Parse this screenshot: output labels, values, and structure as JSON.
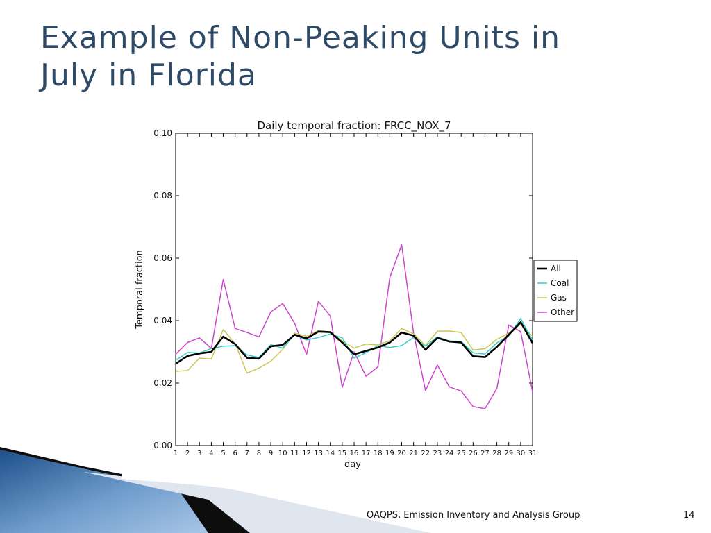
{
  "slide": {
    "title_line1": "Example of Non-Peaking Units in",
    "title_line2": "July in Florida",
    "title_color": "#2e4a66"
  },
  "footer": {
    "text": "OAQPS, Emission Inventory and Analysis Group",
    "page_number": "14"
  },
  "chart_data": {
    "type": "line",
    "title": "Daily temporal fraction: FRCC_NOX_7",
    "xlabel": "day",
    "ylabel": "Temporal fraction",
    "xlim": [
      1,
      31
    ],
    "ylim": [
      0,
      0.1
    ],
    "yticks": [
      "0.00",
      "0.02",
      "0.04",
      "0.06",
      "0.08",
      "0.10"
    ],
    "x": [
      1,
      2,
      3,
      4,
      5,
      6,
      7,
      8,
      9,
      10,
      11,
      12,
      13,
      14,
      15,
      16,
      17,
      18,
      19,
      20,
      21,
      22,
      23,
      24,
      25,
      26,
      27,
      28,
      29,
      30,
      31
    ],
    "grid": false,
    "legend_position": "right",
    "series": [
      {
        "name": "All",
        "color": "#000000",
        "values": [
          0.0262,
          0.0287,
          0.0295,
          0.03,
          0.0349,
          0.0325,
          0.0281,
          0.0278,
          0.0318,
          0.0322,
          0.0355,
          0.0343,
          0.0365,
          0.0363,
          0.033,
          0.0292,
          0.0303,
          0.0314,
          0.033,
          0.0362,
          0.0352,
          0.0307,
          0.0345,
          0.0333,
          0.033,
          0.0286,
          0.0283,
          0.0316,
          0.0355,
          0.0395,
          0.0328
        ]
      },
      {
        "name": "Coal",
        "color": "#33cccc",
        "values": [
          0.0273,
          0.0298,
          0.0296,
          0.0311,
          0.0318,
          0.032,
          0.029,
          0.0282,
          0.0323,
          0.0312,
          0.0355,
          0.0338,
          0.0346,
          0.0357,
          0.0345,
          0.028,
          0.0297,
          0.032,
          0.0314,
          0.032,
          0.0346,
          0.0318,
          0.0348,
          0.0335,
          0.0333,
          0.0297,
          0.0293,
          0.0329,
          0.0351,
          0.0407,
          0.0337
        ]
      },
      {
        "name": "Gas",
        "color": "#c8c850",
        "values": [
          0.0238,
          0.024,
          0.028,
          0.0277,
          0.0372,
          0.0326,
          0.0232,
          0.0248,
          0.027,
          0.0308,
          0.036,
          0.035,
          0.0368,
          0.0364,
          0.0335,
          0.0312,
          0.0325,
          0.0322,
          0.0336,
          0.0375,
          0.0358,
          0.032,
          0.0366,
          0.0367,
          0.0362,
          0.0306,
          0.031,
          0.034,
          0.036,
          0.0388,
          0.035
        ]
      },
      {
        "name": "Other",
        "color": "#cc44cc",
        "values": [
          0.0292,
          0.033,
          0.0345,
          0.0311,
          0.0532,
          0.0375,
          0.0362,
          0.0348,
          0.0428,
          0.0455,
          0.0392,
          0.0292,
          0.0462,
          0.0415,
          0.0186,
          0.03,
          0.0222,
          0.0252,
          0.0538,
          0.0643,
          0.036,
          0.0176,
          0.0258,
          0.0188,
          0.0175,
          0.0125,
          0.0118,
          0.0183,
          0.0386,
          0.0365,
          0.0172
        ]
      }
    ]
  }
}
